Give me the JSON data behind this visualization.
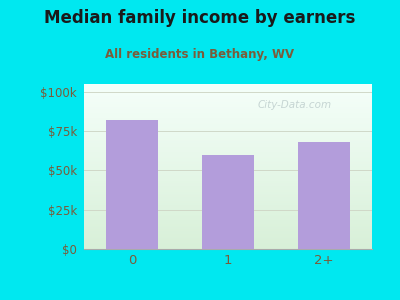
{
  "title": "Median family income by earners",
  "subtitle": "All residents in Bethany, WV",
  "categories": [
    "0",
    "1",
    "2+"
  ],
  "values": [
    82000,
    60000,
    68000
  ],
  "bar_color": "#b39ddb",
  "outer_bg": "#00e8f0",
  "plot_bg_top": "#f5fffa",
  "plot_bg_bottom": "#d8f0d8",
  "title_color": "#1a1a1a",
  "subtitle_color": "#7a5c3a",
  "tick_color": "#7a5c3a",
  "ytick_labels": [
    "$0",
    "$25k",
    "$50k",
    "$75k",
    "$100k"
  ],
  "ytick_values": [
    0,
    25000,
    50000,
    75000,
    100000
  ],
  "ylim": [
    0,
    105000
  ],
  "watermark": "City-Data.com",
  "grid_color": "#d0d8c8"
}
